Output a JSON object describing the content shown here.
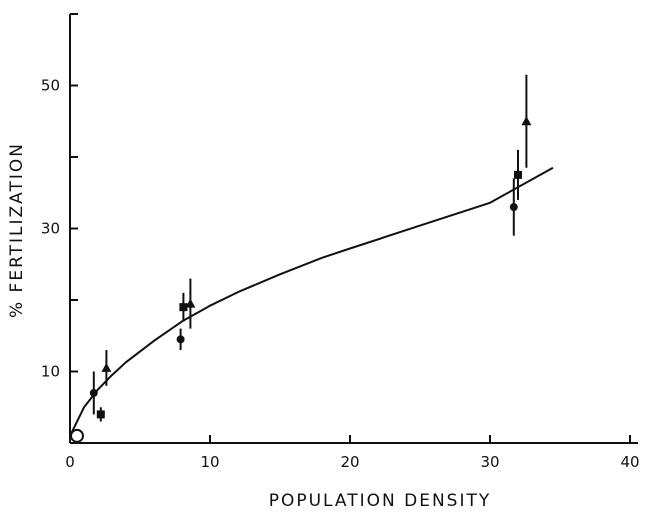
{
  "chart_data": {
    "type": "scatter",
    "title": "",
    "xlabel": "POPULATION DENSITY",
    "ylabel": "% FERTILIZATION",
    "xlim": [
      0,
      40
    ],
    "ylim": [
      0,
      60
    ],
    "x_ticks": [
      0,
      10,
      20,
      30,
      40
    ],
    "y_ticks": [
      10,
      30,
      50
    ],
    "grid": false,
    "legend": "none",
    "series": [
      {
        "marker": "circle",
        "points": [
          {
            "x": 1.7,
            "y": 7.0,
            "err": 3.0
          },
          {
            "x": 7.9,
            "y": 14.5,
            "err": 1.5
          },
          {
            "x": 31.7,
            "y": 33.0,
            "err": 4.0
          }
        ]
      },
      {
        "marker": "square",
        "points": [
          {
            "x": 2.2,
            "y": 4.0,
            "err": 1.0
          },
          {
            "x": 8.1,
            "y": 19.0,
            "err": 2.0
          },
          {
            "x": 32.0,
            "y": 37.5,
            "err": 3.5
          }
        ]
      },
      {
        "marker": "triangle",
        "points": [
          {
            "x": 2.6,
            "y": 10.5,
            "err": 2.5
          },
          {
            "x": 8.6,
            "y": 19.5,
            "err": 3.5
          },
          {
            "x": 32.6,
            "y": 45.0,
            "err": 6.5
          }
        ]
      },
      {
        "marker": "open-circle",
        "points": [
          {
            "x": 0.5,
            "y": 1.0
          }
        ]
      }
    ],
    "fit_curve": {
      "points": [
        [
          0.0,
          1.0
        ],
        [
          1.0,
          5.0
        ],
        [
          2.0,
          7.5
        ],
        [
          3.0,
          9.5
        ],
        [
          4.0,
          11.3
        ],
        [
          6.0,
          14.3
        ],
        [
          8.0,
          17.0
        ],
        [
          10.0,
          19.2
        ],
        [
          12.0,
          21.1
        ],
        [
          15.0,
          23.6
        ],
        [
          18.0,
          25.9
        ],
        [
          20.0,
          27.2
        ],
        [
          25.0,
          30.4
        ],
        [
          30.0,
          33.6
        ],
        [
          34.5,
          38.5
        ]
      ]
    }
  }
}
